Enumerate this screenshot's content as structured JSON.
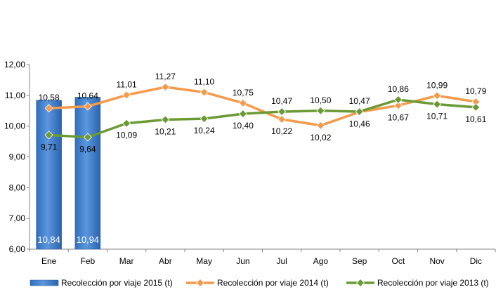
{
  "chart_data": {
    "type": "bar",
    "categories": [
      "Ene",
      "Feb",
      "Mar",
      "Abr",
      "May",
      "Jun",
      "Jul",
      "Ago",
      "Sep",
      "Oct",
      "Nov",
      "Dic"
    ],
    "ylim": [
      6,
      12
    ],
    "y_ticks": [
      "6,00",
      "7,00",
      "8,00",
      "9,00",
      "10,00",
      "11,00",
      "12,00"
    ],
    "y_tick_values": [
      6,
      7,
      8,
      9,
      10,
      11,
      12
    ],
    "grid": false,
    "legend_position": "bottom",
    "series": [
      {
        "name": "Recolección por viaje 2015 (t)",
        "type": "bar",
        "color": "#4a86d0",
        "values": [
          10.84,
          10.94,
          null,
          null,
          null,
          null,
          null,
          null,
          null,
          null,
          null,
          null
        ],
        "labels": [
          "10,84",
          "10,94",
          "",
          "",
          "",
          "",
          "",
          "",
          "",
          "",
          "",
          ""
        ]
      },
      {
        "name": "Recolección por viaje 2014 (t)",
        "type": "line",
        "color": "#f59a4a",
        "values": [
          10.58,
          10.64,
          11.01,
          11.27,
          11.1,
          10.75,
          10.22,
          10.02,
          10.46,
          10.67,
          10.99,
          10.79
        ],
        "labels": [
          "10,58",
          "10,64",
          "11,01",
          "11,27",
          "11,10",
          "10,75",
          "10,22",
          "10,02",
          "10,46",
          "10,67",
          "10,99",
          "10,79"
        ]
      },
      {
        "name": "Recolección por viaje 2013 (t)",
        "type": "line",
        "color": "#6b9a35",
        "values": [
          9.71,
          9.64,
          10.09,
          10.21,
          10.24,
          10.4,
          10.47,
          10.5,
          10.47,
          10.86,
          10.71,
          10.61
        ],
        "labels": [
          "9,71",
          "9,64",
          "10,09",
          "10,21",
          "10,24",
          "10,40",
          "10,47",
          "10,50",
          "10,47",
          "10,86",
          "10,71",
          "10,61"
        ]
      }
    ]
  }
}
